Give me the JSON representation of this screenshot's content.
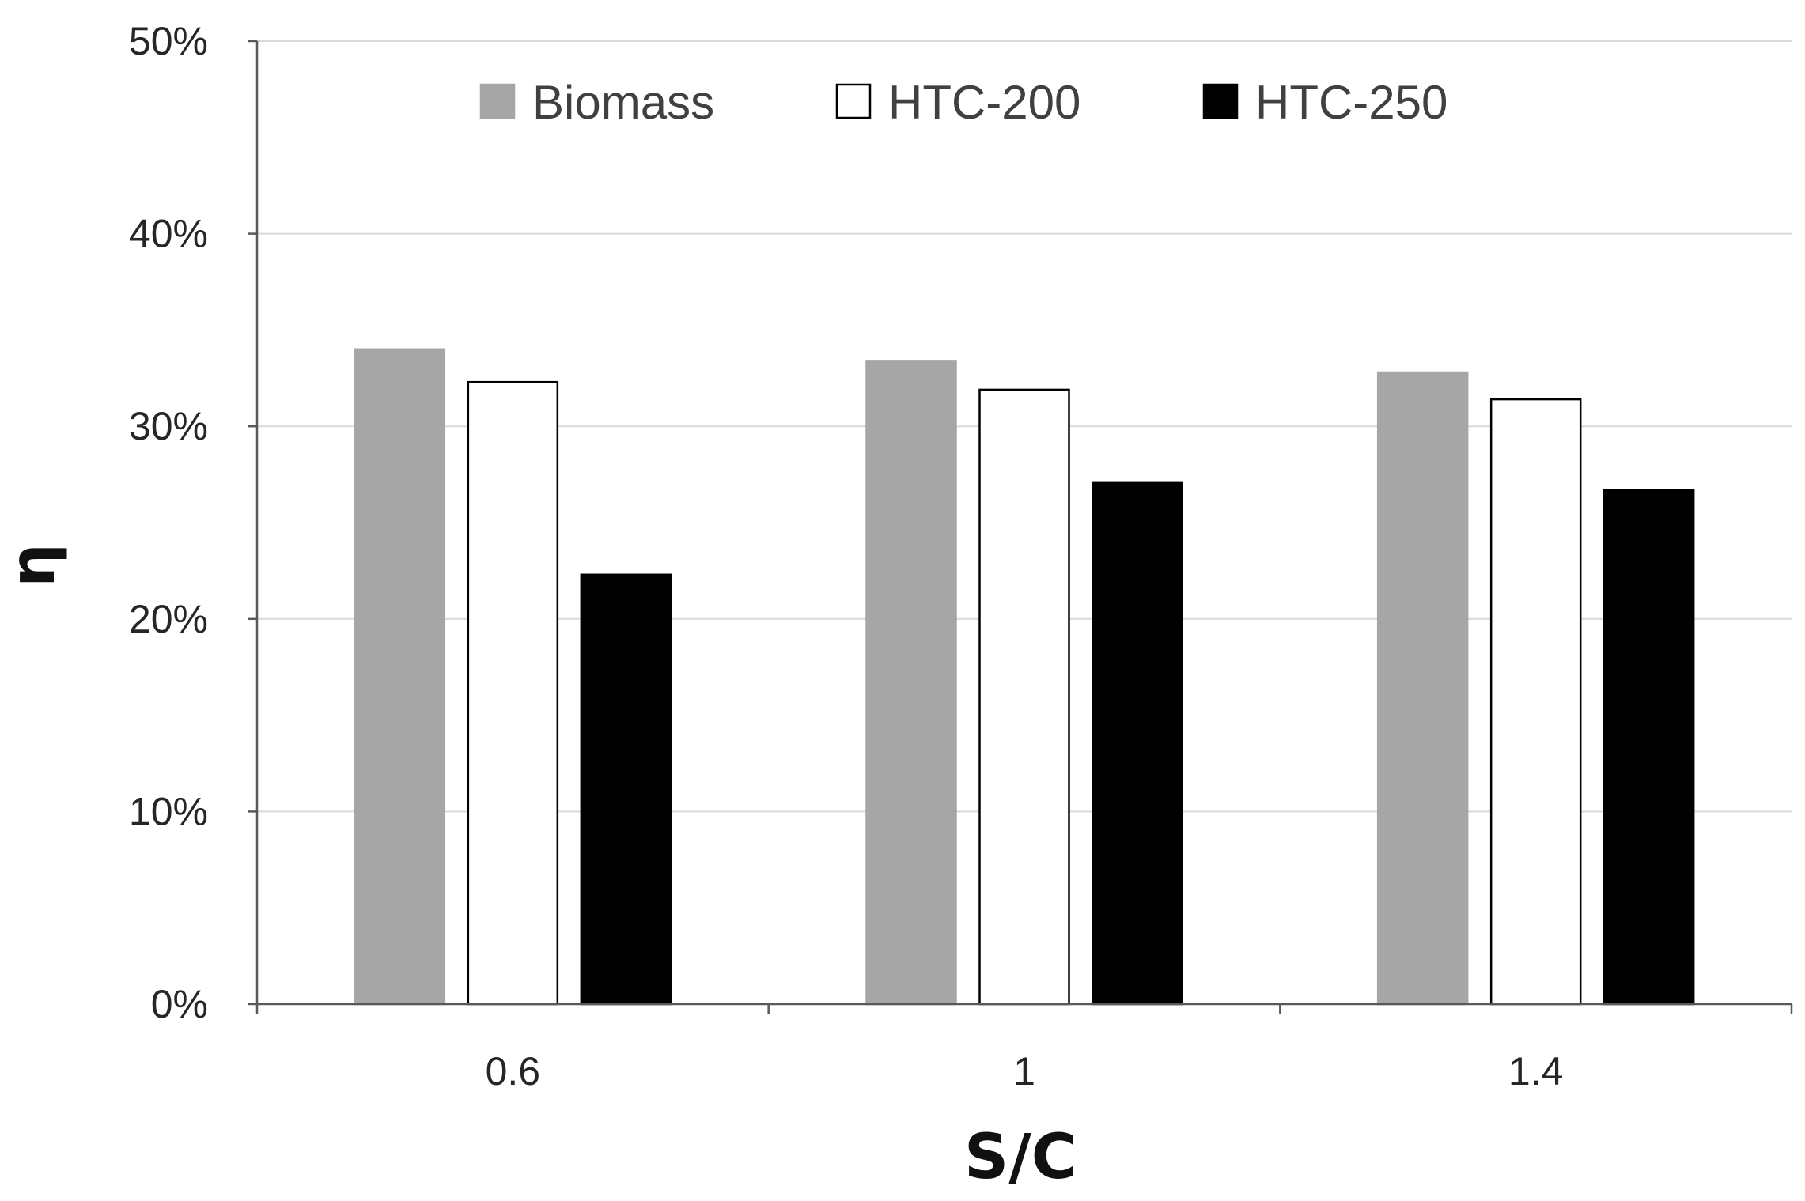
{
  "chart_data": {
    "type": "bar",
    "title": "",
    "xlabel": "S/C",
    "ylabel": "η",
    "categories": [
      "0.6",
      "1",
      "1.4"
    ],
    "ylim": [
      0,
      0.5
    ],
    "yticks": [
      0,
      0.1,
      0.2,
      0.3,
      0.4,
      0.5
    ],
    "ytick_labels": [
      "0%",
      "10%",
      "20%",
      "30%",
      "40%",
      "50%"
    ],
    "grid": "horizontal",
    "legend_position": "top-center",
    "series": [
      {
        "name": "Biomass",
        "color": "#a6a6a6",
        "edge": "#a6a6a6",
        "values": [
          0.34,
          0.334,
          0.328
        ]
      },
      {
        "name": "HTC-200",
        "color": "#ffffff",
        "edge": "#000000",
        "values": [
          0.323,
          0.319,
          0.314
        ]
      },
      {
        "name": "HTC-250",
        "color": "#000000",
        "edge": "#000000",
        "values": [
          0.223,
          0.271,
          0.267
        ]
      }
    ]
  }
}
